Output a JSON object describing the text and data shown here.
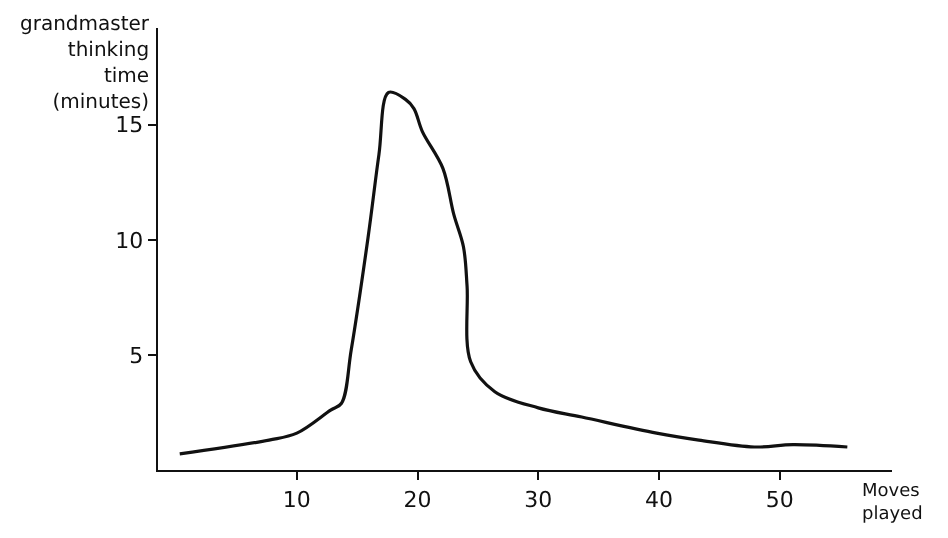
{
  "chart_data": {
    "type": "line",
    "xlabel": "Moves\nplayed",
    "ylabel": "grandmaster\nthinking\ntime\n(minutes)",
    "x": [
      0.3,
      7.7,
      10,
      12.8,
      13.7,
      14.5,
      15.9,
      16.8,
      17.6,
      19,
      19.7,
      20.4,
      22.1,
      23,
      23.8,
      24.1,
      24.4,
      26.4,
      30,
      33.6,
      39.8,
      43.3,
      47.9,
      51.1,
      55.6
    ],
    "series": [
      {
        "color": "#111111",
        "values": [
          0.7,
          1.3,
          1.6,
          2.6,
          2.9,
          5.2,
          10.1,
          13.7,
          16.4,
          16.1,
          15.7,
          14.7,
          13.1,
          11.1,
          9.7,
          8.0,
          4.7,
          3.4,
          2.7,
          2.3,
          1.6,
          1.3,
          1.0,
          1.1,
          1.0
        ]
      }
    ],
    "xlim": [
      -1.5,
      59.3
    ],
    "ylim": [
      0,
      19.2
    ],
    "xticks": [
      10,
      20,
      30,
      40,
      50
    ],
    "yticks": [
      5,
      10,
      15
    ],
    "marker": "none",
    "line_style": "solid"
  }
}
